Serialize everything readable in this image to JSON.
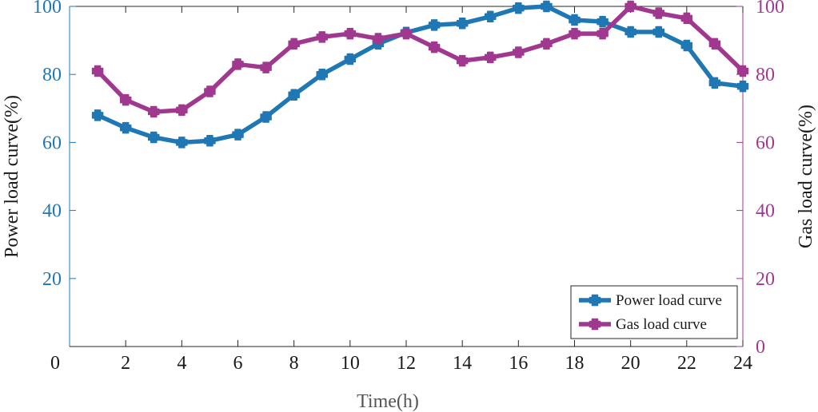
{
  "chart_data": {
    "type": "line",
    "title": "",
    "xlabel": "Time(h)",
    "ylabel_left": "Power load curve(%)",
    "ylabel_right": "Gas load curve(%)",
    "xlim": [
      0,
      24
    ],
    "ylim_left": [
      0,
      100
    ],
    "ylim_right": [
      0,
      100
    ],
    "x_ticks": [
      "2",
      "4",
      "6",
      "8",
      "10",
      "12",
      "14",
      "16",
      "18",
      "20",
      "22",
      "24"
    ],
    "x_origin_label": "0",
    "y_ticks_left": [
      "20",
      "40",
      "60",
      "80",
      "100"
    ],
    "y_ticks_right": [
      "0",
      "20",
      "40",
      "60",
      "80",
      "100"
    ],
    "grid": false,
    "legend_position": "bottom-right",
    "x": [
      1,
      2,
      3,
      4,
      5,
      6,
      7,
      8,
      9,
      10,
      11,
      12,
      13,
      14,
      15,
      16,
      17,
      18,
      19,
      20,
      21,
      22,
      23,
      24
    ],
    "series": [
      {
        "name": "Power load curve",
        "axis": "left",
        "color": "#1f77b4",
        "values": [
          68,
          64.3,
          61.5,
          60,
          60.5,
          62.3,
          67.5,
          74,
          80,
          84.5,
          89,
          92.3,
          94.5,
          95,
          97,
          99.5,
          100,
          96,
          95.5,
          92.5,
          92.5,
          88.5,
          77.5,
          76.5
        ]
      },
      {
        "name": "Gas load curve",
        "axis": "right",
        "color": "#a0388f",
        "values": [
          81,
          72.5,
          69,
          69.5,
          75,
          83,
          82,
          89,
          91,
          92,
          90.5,
          92,
          88,
          84,
          85,
          86.5,
          89,
          92,
          92,
          100,
          98,
          96.5,
          89,
          81
        ]
      }
    ]
  }
}
